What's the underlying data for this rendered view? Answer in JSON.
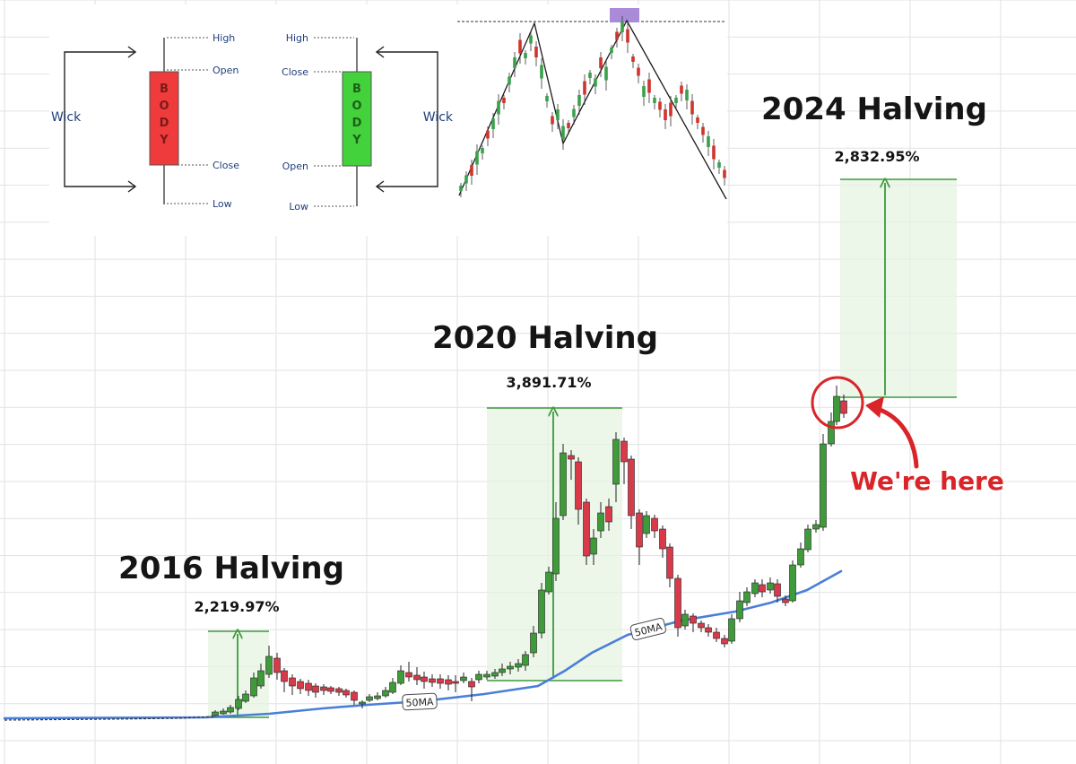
{
  "colors": {
    "bull": "#3f9a3a",
    "bear": "#d83a4a",
    "ma": "#4a7fd8",
    "zone": "#e6f3e1",
    "zone_line": "#3d9a3d",
    "grid": "#e2e2e2",
    "highlight": "#d9252a",
    "text": "#151515"
  },
  "chart_data": {
    "type": "candlestick",
    "title": "",
    "xlabel": "",
    "ylabel": "",
    "grid": true,
    "moving_average_label": "50MA",
    "halvings": [
      {
        "label": "2016 Halving",
        "gain": "2,219.97%"
      },
      {
        "label": "2020 Halving",
        "gain": "3,891.71%"
      },
      {
        "label": "2024 Halving",
        "gain": "2,832.95%"
      }
    ],
    "current_marker": "We're here"
  },
  "inset": {
    "candle_anatomy": {
      "wick": "Wick",
      "body": "BODY",
      "bearish_labels": [
        "High",
        "Open",
        "Close",
        "Low"
      ],
      "bullish_labels": [
        "High",
        "Close",
        "Open",
        "Low"
      ]
    },
    "pattern_chart": {
      "description": ""
    }
  }
}
